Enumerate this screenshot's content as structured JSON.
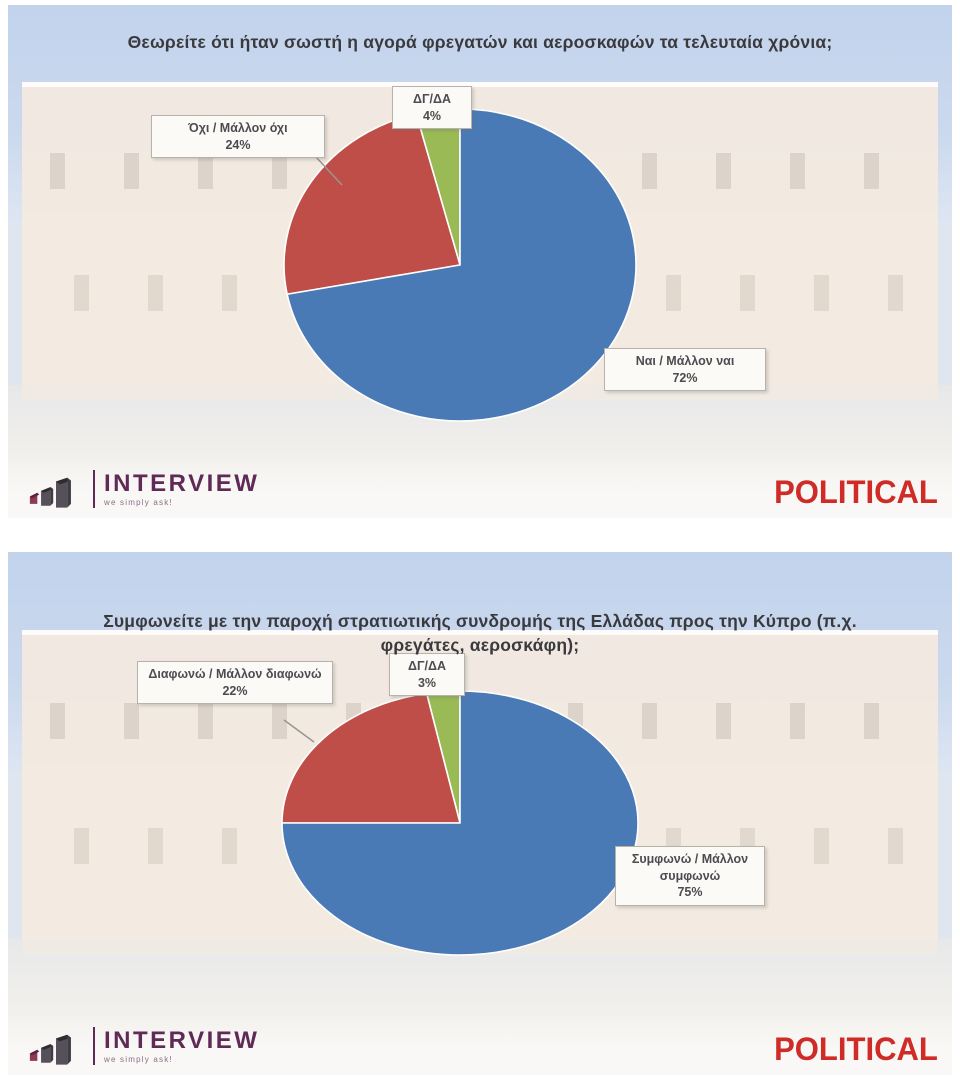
{
  "chart_data": [
    {
      "type": "pie",
      "title": "Θεωρείτε ότι ήταν σωστή η αγορά φρεγατών και αεροσκαφών τα τελευταία χρόνια;",
      "labels": [
        "Ναι / Μάλλον ναι",
        "Όχι / Μάλλον όχι",
        "ΔΓ/ΔΑ"
      ],
      "values": [
        72,
        24,
        4
      ],
      "colors": [
        "#4a7ab5",
        "#bf4e49",
        "#9aba55"
      ],
      "start_angle_deg": 0,
      "direction": "clockwise",
      "legend": "none",
      "callout_texts": [
        {
          "label": "ΔΓ/ΔΑ",
          "pct": "4%"
        },
        {
          "label": "Όχι / Μάλλον όχι",
          "pct": "24%"
        },
        {
          "label": "Ναι / Μάλλον ναι",
          "pct": "72%"
        }
      ]
    },
    {
      "type": "pie",
      "title": "Συμφωνείτε με την παροχή στρατιωτικής συνδρομής της Ελλάδας προς την Κύπρο (π.χ. φρεγάτες, αεροσκάφη);",
      "labels": [
        "Συμφωνώ / Μάλλον συμφωνώ",
        "Διαφωνώ / Μάλλον διαφωνώ",
        "ΔΓ/ΔΑ"
      ],
      "values": [
        75,
        22,
        3
      ],
      "colors": [
        "#4a7ab5",
        "#bf4e49",
        "#9aba55"
      ],
      "start_angle_deg": 0,
      "direction": "clockwise",
      "legend": "none",
      "callout_texts": [
        {
          "label": "ΔΓ/ΔΑ",
          "pct": "3%"
        },
        {
          "label": "Διαφωνώ / Μάλλον διαφωνώ",
          "pct": "22%"
        },
        {
          "label": "Συμφωνώ / Μάλλον συμφωνώ",
          "pct": "75%"
        }
      ]
    }
  ],
  "branding": {
    "interview_wordmark": "INTERVIEW",
    "interview_tagline": "we simply ask!",
    "political_wordmark": "POLITICAL"
  },
  "colors": {
    "pie_blue": "#4a7ab5",
    "pie_red": "#bf4e49",
    "pie_green": "#9aba55",
    "political_red": "#cf2b27",
    "interview_maroon": "#5f2a56"
  }
}
